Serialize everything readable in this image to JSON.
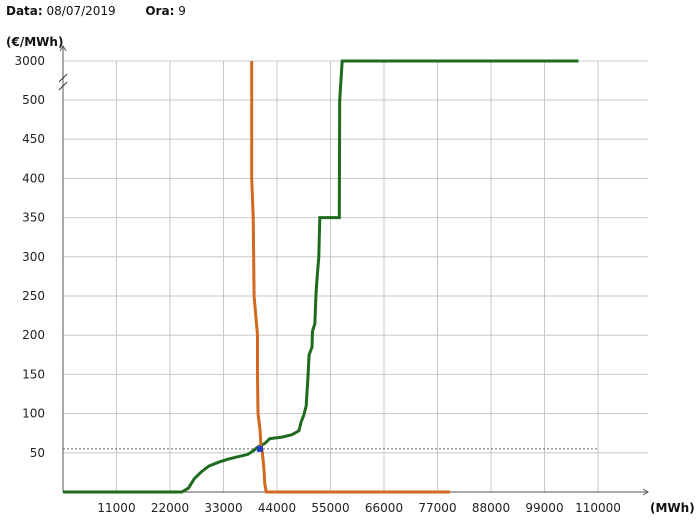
{
  "header": {
    "date_label": "Data:",
    "date_value": "08/07/2019",
    "hour_label": "Ora:",
    "hour_value": "9"
  },
  "chart_data": {
    "type": "line",
    "ylabel": "(€/MWh)",
    "xlabel": "(MWh)",
    "xlim": [
      0,
      110000
    ],
    "x_ticks": [
      11000,
      22000,
      33000,
      44000,
      55000,
      66000,
      77000,
      88000,
      99000,
      110000
    ],
    "y_ticks_lower": [
      50,
      100,
      150,
      200,
      250,
      300,
      350,
      400,
      450,
      500
    ],
    "y_tick_upper": 3000,
    "y_axis_break": "between 500 and 3000",
    "grid": true,
    "legend": "none",
    "price_line": 55,
    "intersection": [
      40500,
      55
    ],
    "series": [
      {
        "color": "#1e6b1e",
        "points": [
          [
            0,
            0
          ],
          [
            24400,
            0
          ],
          [
            25800,
            5
          ],
          [
            27000,
            17
          ],
          [
            28500,
            26
          ],
          [
            30000,
            33
          ],
          [
            32000,
            38
          ],
          [
            34000,
            42
          ],
          [
            36000,
            45
          ],
          [
            38000,
            48
          ],
          [
            39000,
            52
          ],
          [
            40000,
            57
          ],
          [
            41500,
            62
          ],
          [
            42500,
            68
          ],
          [
            45000,
            70
          ],
          [
            47000,
            73
          ],
          [
            48500,
            78
          ],
          [
            49000,
            90
          ],
          [
            49500,
            98
          ],
          [
            50000,
            110
          ],
          [
            50400,
            150
          ],
          [
            50600,
            175
          ],
          [
            51200,
            185
          ],
          [
            51300,
            205
          ],
          [
            51800,
            215
          ],
          [
            52000,
            250
          ],
          [
            52200,
            270
          ],
          [
            52600,
            300
          ],
          [
            52800,
            350
          ],
          [
            56800,
            350
          ],
          [
            56900,
            500
          ],
          [
            57400,
            505
          ],
          [
            57800,
            520
          ],
          [
            57800,
            3000
          ],
          [
            106000,
            3000
          ]
        ]
      },
      {
        "color": "#d2691e",
        "points": [
          [
            38800,
            3000
          ],
          [
            38800,
            400
          ],
          [
            39100,
            350
          ],
          [
            39300,
            250
          ],
          [
            40000,
            200
          ],
          [
            40000,
            150
          ],
          [
            40100,
            100
          ],
          [
            40500,
            80
          ],
          [
            40700,
            60
          ],
          [
            41000,
            50
          ],
          [
            41300,
            30
          ],
          [
            41500,
            10
          ],
          [
            41800,
            0
          ],
          [
            79600,
            0
          ]
        ]
      }
    ]
  }
}
